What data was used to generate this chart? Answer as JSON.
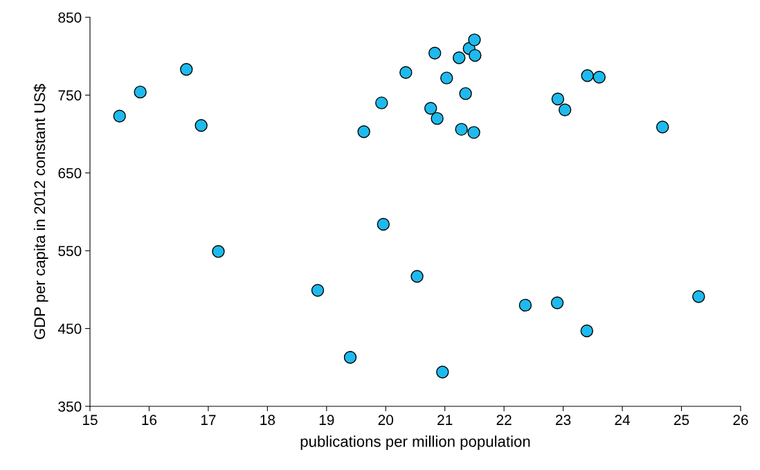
{
  "chart_data": {
    "type": "scatter",
    "xlabel": "publications per million population",
    "ylabel": "GDP per capita in 2012 constant US$",
    "x": [
      15.5,
      15.85,
      16.63,
      16.88,
      17.17,
      18.85,
      19.4,
      19.63,
      19.93,
      19.96,
      20.34,
      20.53,
      20.76,
      20.83,
      20.87,
      20.96,
      21.03,
      21.24,
      21.28,
      21.35,
      21.41,
      21.5,
      21.49,
      21.51,
      22.36,
      22.9,
      22.91,
      23.03,
      23.41,
      23.4,
      23.61,
      24.68,
      25.29
    ],
    "values": [
      723,
      754,
      783,
      711,
      549,
      499,
      413,
      703,
      740,
      584,
      779,
      517,
      733,
      804,
      720,
      394,
      772,
      798,
      706,
      752,
      810,
      821,
      702,
      801,
      480,
      483,
      745,
      731,
      775,
      447,
      773,
      709,
      491
    ],
    "color": "#1ebaed",
    "marker": "circle",
    "grid": false,
    "legend": false,
    "xlim": [
      15,
      26
    ],
    "xticks": [
      15,
      16,
      17,
      18,
      19,
      20,
      21,
      22,
      23,
      24,
      25,
      26
    ],
    "ylim": [
      350,
      850
    ],
    "yticks": [
      350,
      450,
      550,
      650,
      750,
      850
    ]
  }
}
